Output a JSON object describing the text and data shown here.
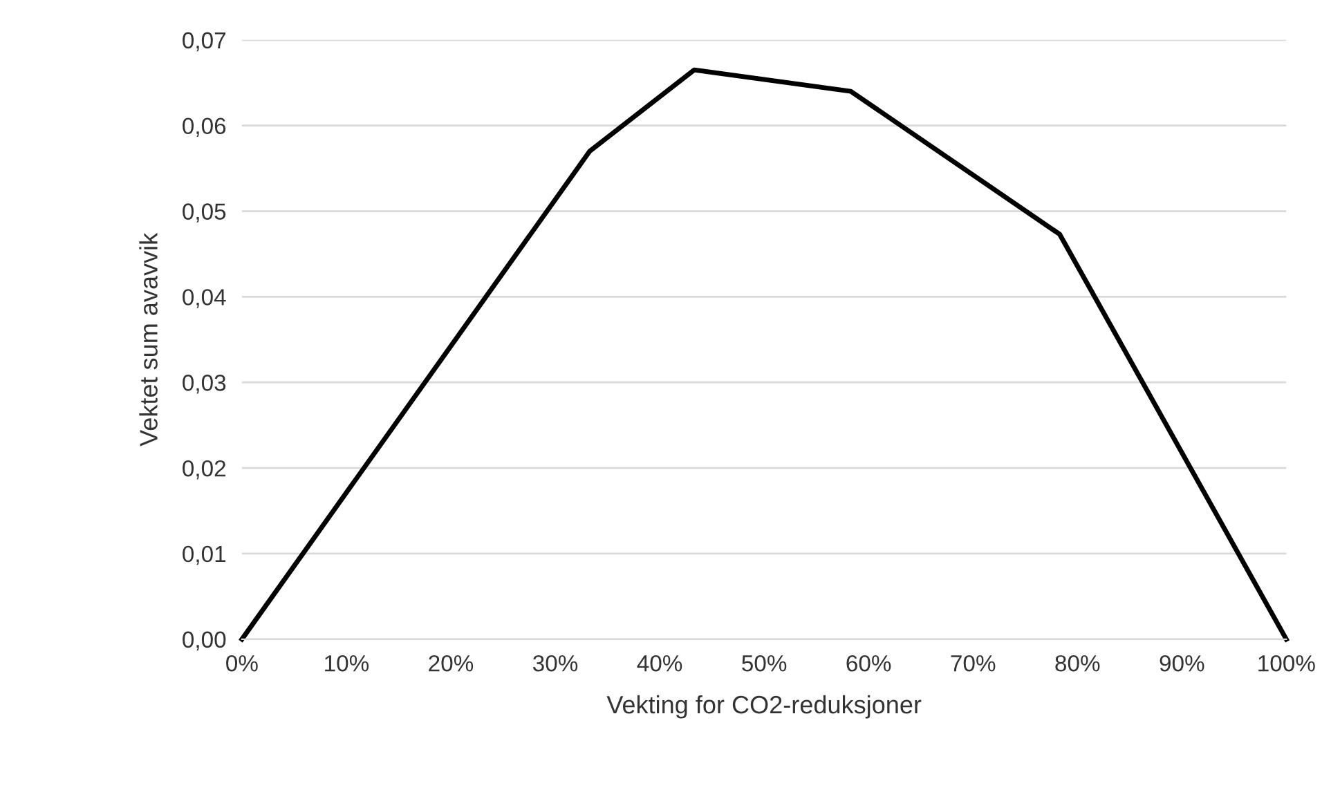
{
  "chart_data": {
    "type": "line",
    "xlabel": "Vekting for CO2-reduksjoner",
    "ylabel": "Vektet sum avavvik",
    "x": [
      0,
      33.3,
      43.3,
      58.3,
      78.3,
      100
    ],
    "series": [
      {
        "color": "#000000",
        "values": [
          0,
          0.057,
          0.0665,
          0.064,
          0.0473,
          0
        ]
      }
    ],
    "xlim": [
      0,
      100
    ],
    "xticks": [
      {
        "value": 0,
        "label": "0%"
      },
      {
        "value": 10,
        "label": "10%"
      },
      {
        "value": 20,
        "label": "20%"
      },
      {
        "value": 30,
        "label": "30%"
      },
      {
        "value": 40,
        "label": "40%"
      },
      {
        "value": 50,
        "label": "50%"
      },
      {
        "value": 60,
        "label": "60%"
      },
      {
        "value": 70,
        "label": "70%"
      },
      {
        "value": 80,
        "label": "80%"
      },
      {
        "value": 90,
        "label": "90%"
      },
      {
        "value": 100,
        "label": "100%"
      }
    ],
    "ylim": [
      0,
      0.07
    ],
    "yticks": [
      {
        "value": 0,
        "label": "0,00"
      },
      {
        "value": 0.01,
        "label": "0,01"
      },
      {
        "value": 0.02,
        "label": "0,02"
      },
      {
        "value": 0.03,
        "label": "0,03"
      },
      {
        "value": 0.04,
        "label": "0,04"
      },
      {
        "value": 0.05,
        "label": "0,05"
      },
      {
        "value": 0.06,
        "label": "0,06"
      },
      {
        "value": 0.07,
        "label": "0,07"
      }
    ],
    "grid": "y",
    "marker": "none",
    "line_style": "solid",
    "legend": false
  }
}
